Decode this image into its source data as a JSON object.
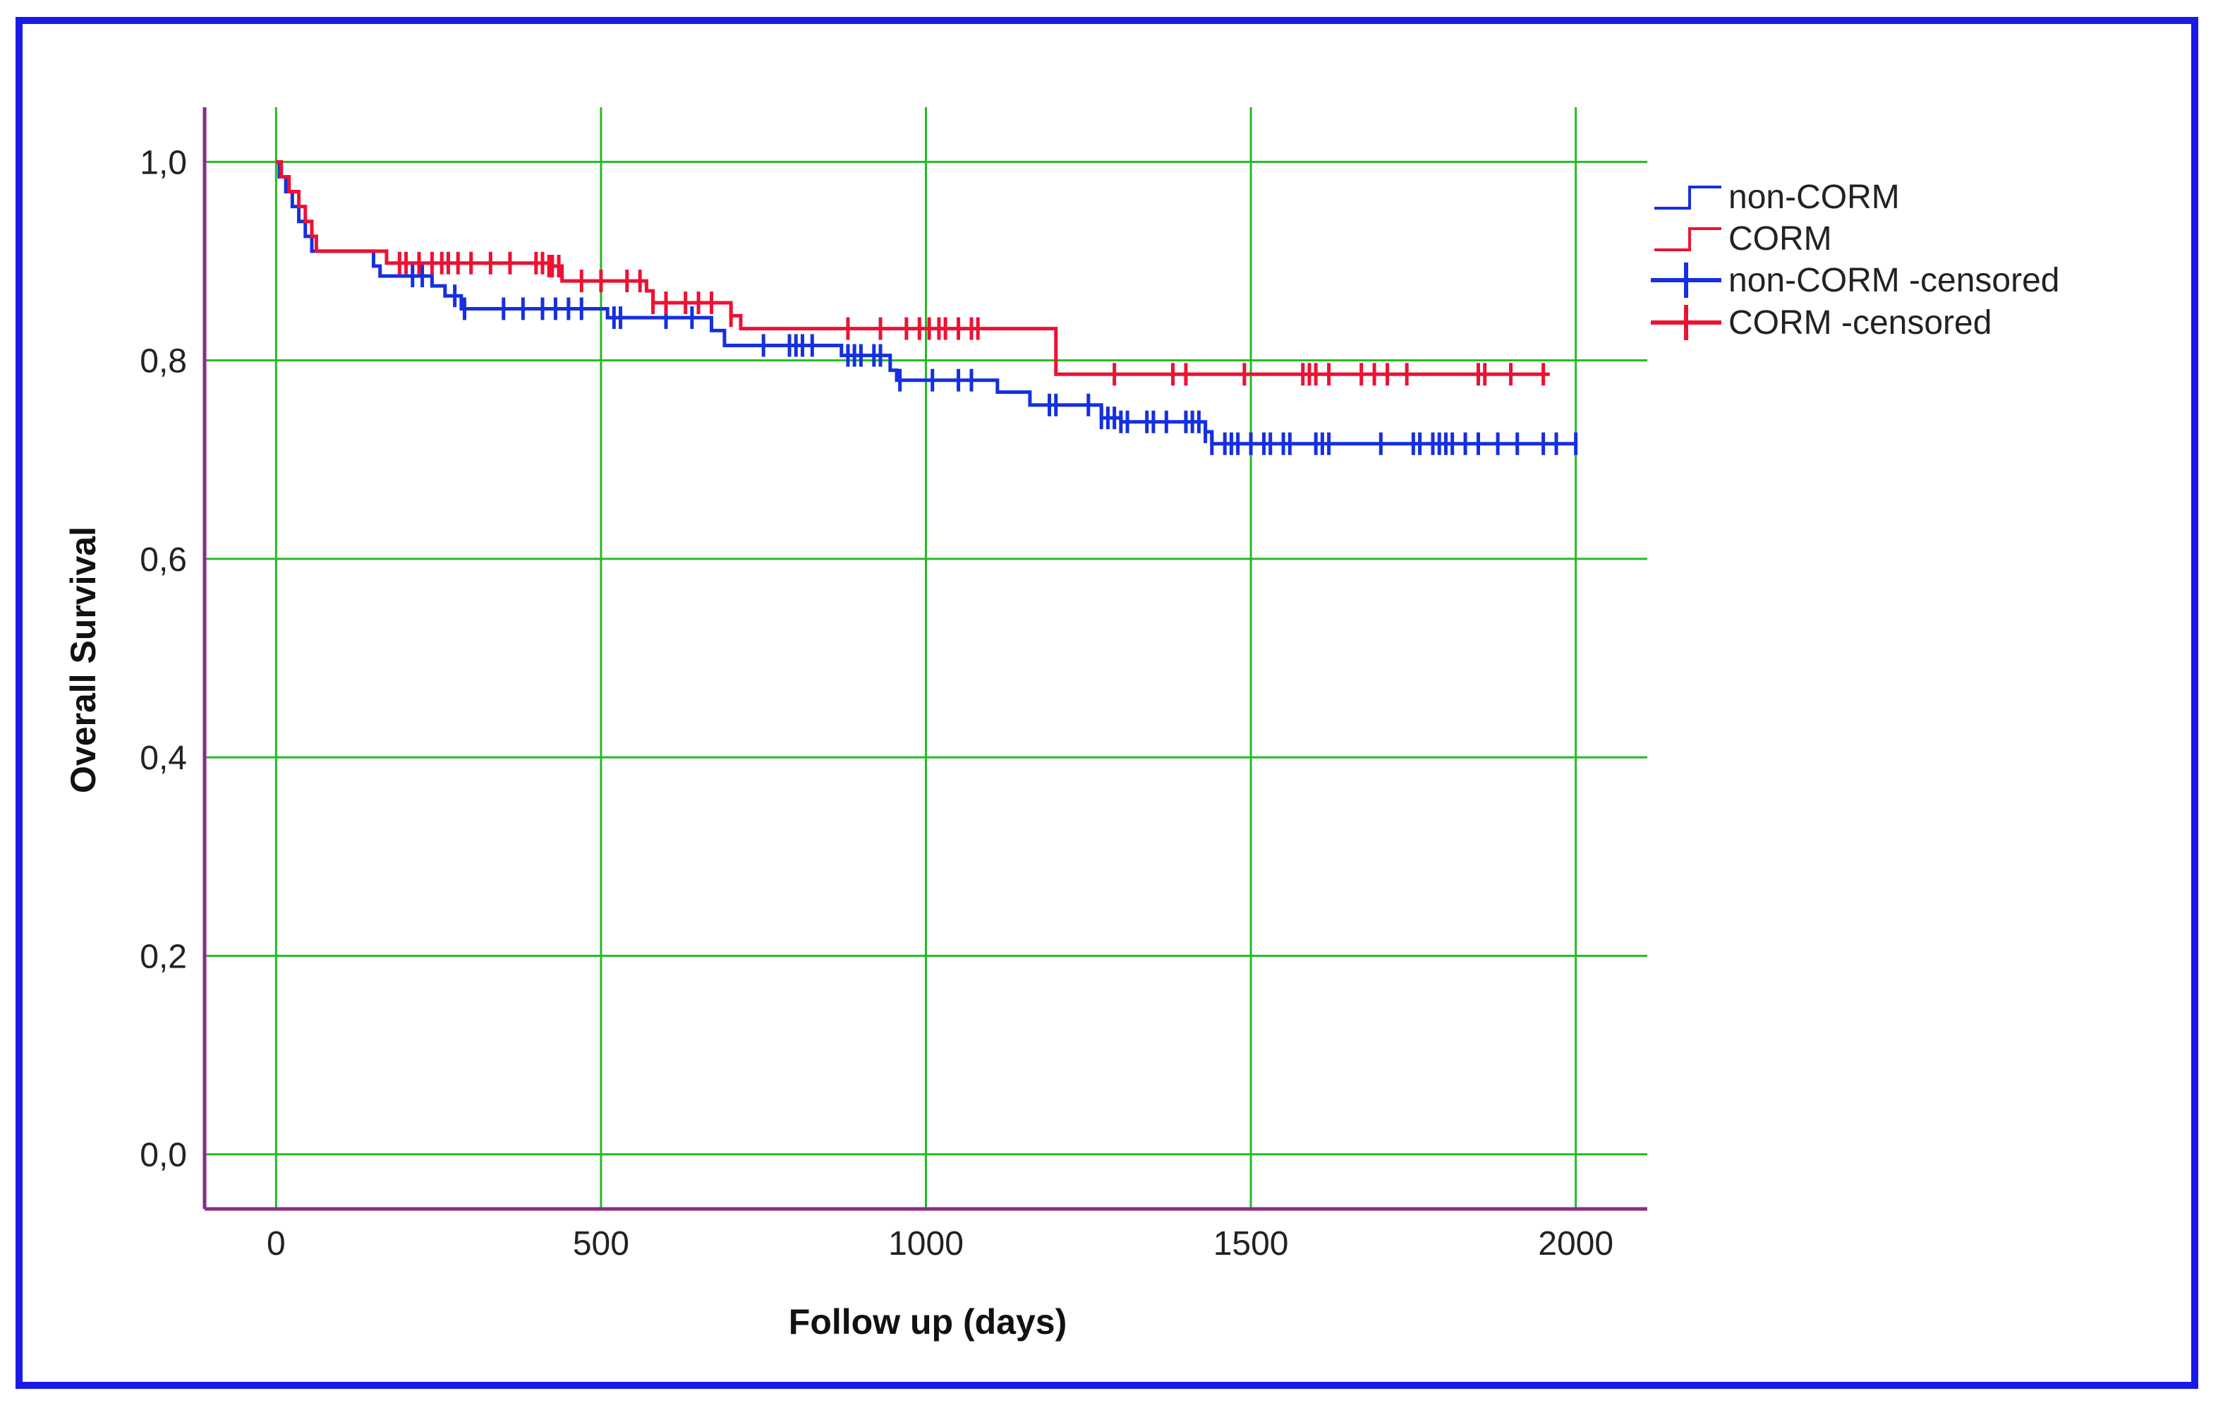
{
  "chart_data": {
    "type": "line",
    "subtype": "kaplan-meier step",
    "xlabel": "Follow up (days)",
    "ylabel": "Overall Survival",
    "xlim": [
      -110,
      2110
    ],
    "ylim": [
      -0.055,
      1.055
    ],
    "x_ticks": [
      0,
      500,
      1000,
      1500,
      2000
    ],
    "x_tick_labels": [
      "0",
      "500",
      "1000",
      "1500",
      "2000"
    ],
    "y_ticks": [
      0.0,
      0.2,
      0.4,
      0.6,
      0.8,
      1.0
    ],
    "y_tick_labels": [
      "0,0",
      "0,2",
      "0,4",
      "0,6",
      "0,8",
      "1,0"
    ],
    "grid": true,
    "legend_position": "right",
    "colors": {
      "frame": "#1a1ae6",
      "axis": "#8b2a8b",
      "grid": "#22bb22",
      "non_corm": "#1530e0",
      "corm": "#ee1133"
    },
    "series": [
      {
        "name": "non-CORM",
        "censored_name": "non-CORM -censored",
        "color": "#1530e0",
        "steps": [
          [
            0,
            1.0
          ],
          [
            5,
            0.985
          ],
          [
            15,
            0.97
          ],
          [
            25,
            0.955
          ],
          [
            35,
            0.94
          ],
          [
            45,
            0.925
          ],
          [
            55,
            0.91
          ],
          [
            150,
            0.895
          ],
          [
            160,
            0.885
          ],
          [
            240,
            0.875
          ],
          [
            260,
            0.865
          ],
          [
            285,
            0.852
          ],
          [
            510,
            0.843
          ],
          [
            670,
            0.83
          ],
          [
            690,
            0.815
          ],
          [
            870,
            0.805
          ],
          [
            945,
            0.79
          ],
          [
            955,
            0.78
          ],
          [
            1110,
            0.768
          ],
          [
            1160,
            0.755
          ],
          [
            1270,
            0.742
          ],
          [
            1300,
            0.738
          ],
          [
            1430,
            0.728
          ],
          [
            1440,
            0.716
          ],
          [
            2000,
            0.716
          ]
        ],
        "censored": [
          210,
          225,
          275,
          290,
          350,
          380,
          410,
          430,
          450,
          470,
          520,
          530,
          600,
          640,
          750,
          790,
          800,
          810,
          825,
          880,
          890,
          900,
          920,
          930,
          960,
          1010,
          1050,
          1070,
          1190,
          1200,
          1250,
          1270,
          1280,
          1290,
          1300,
          1310,
          1340,
          1350,
          1370,
          1400,
          1410,
          1420,
          1430,
          1440,
          1460,
          1470,
          1480,
          1500,
          1520,
          1530,
          1550,
          1560,
          1600,
          1610,
          1620,
          1700,
          1750,
          1760,
          1780,
          1790,
          1800,
          1810,
          1830,
          1850,
          1880,
          1910,
          1950,
          1970,
          2000
        ]
      },
      {
        "name": "CORM",
        "censored_name": "CORM -censored",
        "color": "#ee1133",
        "steps": [
          [
            0,
            1.0
          ],
          [
            8,
            0.985
          ],
          [
            20,
            0.97
          ],
          [
            35,
            0.955
          ],
          [
            45,
            0.94
          ],
          [
            55,
            0.925
          ],
          [
            62,
            0.91
          ],
          [
            170,
            0.898
          ],
          [
            420,
            0.895
          ],
          [
            440,
            0.88
          ],
          [
            570,
            0.87
          ],
          [
            580,
            0.858
          ],
          [
            700,
            0.845
          ],
          [
            715,
            0.832
          ],
          [
            1200,
            0.832
          ],
          [
            1200,
            0.786
          ],
          [
            1960,
            0.786
          ]
        ],
        "censored": [
          190,
          200,
          220,
          240,
          255,
          265,
          280,
          300,
          330,
          360,
          400,
          410,
          420,
          425,
          435,
          470,
          500,
          540,
          560,
          580,
          600,
          630,
          650,
          670,
          700,
          880,
          930,
          970,
          990,
          1005,
          1020,
          1030,
          1050,
          1070,
          1080,
          1290,
          1380,
          1400,
          1490,
          1580,
          1590,
          1600,
          1620,
          1670,
          1690,
          1710,
          1740,
          1850,
          1860,
          1900,
          1950
        ]
      }
    ]
  }
}
